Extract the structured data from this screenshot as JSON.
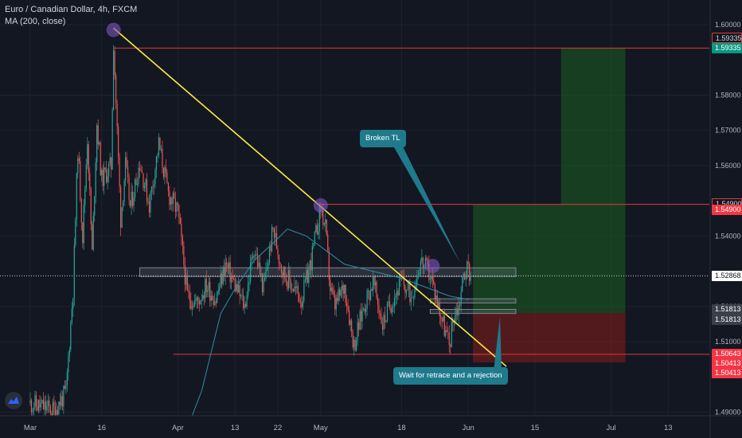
{
  "header": {
    "symbol_line": "Euro / Canadian Dollar, 4h, FXCM",
    "indicator_line": "MA (200, close)"
  },
  "icons": {
    "logo": "tradingview-logo-icon"
  },
  "colors": {
    "background": "#131722",
    "up_candle": "#26a69a",
    "down_candle": "#ef5350",
    "trendline": "#ffeb3b",
    "ma_line": "#2b8fa8",
    "level_line": "#e53935",
    "profit_zone": "#1b5e20",
    "loss_zone": "#7f1d1d",
    "callout": "#1f7a8c",
    "swing_marker": "#7e57c2",
    "current_price_tag": "#ffffff",
    "entry_tag": "#3b3f4a",
    "target_tag": "#089981",
    "stop_tag": "#f23645",
    "axis_text": "#b2b5be"
  },
  "annotations": {
    "broken_tl": "Broken TL",
    "wait": "Wait for retrace and a rejection"
  },
  "price_tags": [
    {
      "label": "1.59335",
      "price": 1.5962,
      "kind": "level"
    },
    {
      "label": "1.59335",
      "price": 1.5933,
      "kind": "target"
    },
    {
      "label": "1.54900",
      "price": 1.5493,
      "kind": "level"
    },
    {
      "label": "1.54900",
      "price": 1.5475,
      "kind": "stop"
    },
    {
      "label": "1.52868",
      "price": 1.5287,
      "kind": "current"
    },
    {
      "label": "1.51813",
      "price": 1.5191,
      "kind": "entry"
    },
    {
      "label": "1.51813",
      "price": 1.5162,
      "kind": "entry"
    },
    {
      "label": "1.50643",
      "price": 1.5065,
      "kind": "stop"
    },
    {
      "label": "1.50413",
      "price": 1.5038,
      "kind": "stop"
    },
    {
      "label": "1.50413",
      "price": 1.501,
      "kind": "stop"
    }
  ],
  "chart_data": {
    "type": "candlestick",
    "title": "Euro / Canadian Dollar, 4h, FXCM",
    "xlabel": "",
    "ylabel": "",
    "ylim": [
      1.489,
      1.607
    ],
    "x_ticks": [
      {
        "label": "Mar",
        "day": 0
      },
      {
        "label": "16",
        "day": 15
      },
      {
        "label": "Apr",
        "day": 31
      },
      {
        "label": "13",
        "day": 43
      },
      {
        "label": "22",
        "day": 52
      },
      {
        "label": "May",
        "day": 61
      },
      {
        "label": "18",
        "day": 78
      },
      {
        "label": "Jun",
        "day": 92
      },
      {
        "label": "15",
        "day": 106
      },
      {
        "label": "Jul",
        "day": 122
      },
      {
        "label": "13",
        "day": 134
      }
    ],
    "y_ticks": [
      {
        "label": "1.60000",
        "value": 1.6
      },
      {
        "label": "1.58000",
        "value": 1.58
      },
      {
        "label": "1.57000",
        "value": 1.57
      },
      {
        "label": "1.56000",
        "value": 1.56
      },
      {
        "label": "1.54000",
        "value": 1.54
      },
      {
        "label": "1.52000",
        "value": 1.52
      },
      {
        "label": "1.51000",
        "value": 1.51
      },
      {
        "label": "1.49000",
        "value": 1.49
      }
    ],
    "price_path": [
      [
        0,
        1.4925
      ],
      [
        5,
        1.4905
      ],
      [
        7.5,
        1.4955
      ],
      [
        9,
        1.525
      ],
      [
        10,
        1.565
      ],
      [
        11,
        1.54
      ],
      [
        12,
        1.568
      ],
      [
        13,
        1.535
      ],
      [
        14,
        1.572
      ],
      [
        15,
        1.556
      ],
      [
        17,
        1.56
      ],
      [
        17.5,
        1.595
      ],
      [
        18,
        1.578
      ],
      [
        19,
        1.545
      ],
      [
        20,
        1.56
      ],
      [
        21,
        1.548
      ],
      [
        23,
        1.561
      ],
      [
        25,
        1.549
      ],
      [
        27,
        1.566
      ],
      [
        29,
        1.552
      ],
      [
        31,
        1.547
      ],
      [
        33,
        1.523
      ],
      [
        35,
        1.521
      ],
      [
        37,
        1.526
      ],
      [
        39,
        1.522
      ],
      [
        41,
        1.532
      ],
      [
        43,
        1.526
      ],
      [
        45,
        1.52
      ],
      [
        47,
        1.537
      ],
      [
        49,
        1.525
      ],
      [
        51,
        1.542
      ],
      [
        53,
        1.53
      ],
      [
        55,
        1.526
      ],
      [
        57,
        1.522
      ],
      [
        59,
        1.533
      ],
      [
        61,
        1.548
      ],
      [
        62,
        1.542
      ],
      [
        63,
        1.525
      ],
      [
        64,
        1.52
      ],
      [
        66,
        1.526
      ],
      [
        68,
        1.509
      ],
      [
        70,
        1.52
      ],
      [
        72,
        1.527
      ],
      [
        74,
        1.515
      ],
      [
        76,
        1.522
      ],
      [
        78,
        1.527
      ],
      [
        80,
        1.523
      ],
      [
        82,
        1.533
      ],
      [
        84,
        1.529
      ],
      [
        86,
        1.519
      ],
      [
        88,
        1.509
      ],
      [
        89,
        1.518
      ],
      [
        90,
        1.52
      ],
      [
        91,
        1.529
      ],
      [
        92,
        1.531
      ],
      [
        92.5,
        1.5287
      ]
    ],
    "ma_200": [
      [
        34,
        1.489
      ],
      [
        36,
        1.496
      ],
      [
        38,
        1.507
      ],
      [
        40,
        1.518
      ],
      [
        43,
        1.525
      ],
      [
        47,
        1.533
      ],
      [
        51,
        1.538
      ],
      [
        54,
        1.542
      ],
      [
        58,
        1.54
      ],
      [
        62,
        1.536
      ],
      [
        66,
        1.532
      ],
      [
        72,
        1.53
      ],
      [
        78,
        1.528
      ],
      [
        84,
        1.525
      ],
      [
        88,
        1.523
      ],
      [
        92,
        1.522
      ]
    ],
    "trendline": {
      "from": [
        17.5,
        1.599
      ],
      "to": [
        100,
        1.503
      ]
    },
    "horizontal_levels": [
      1.59335,
      1.549,
      1.50643
    ],
    "zones": [
      {
        "type": "support-resistance",
        "x0": 23,
        "x1": 102,
        "y0": 1.5285,
        "y1": 1.531
      },
      {
        "type": "entry",
        "x0": 84,
        "x1": 102,
        "y0": 1.521,
        "y1": 1.5222
      },
      {
        "type": "entry",
        "x0": 84,
        "x1": 102,
        "y0": 1.518,
        "y1": 1.5192
      }
    ],
    "long_position": {
      "x0": 93,
      "x1": 125,
      "entry": 1.51813,
      "target": 1.549,
      "target2": 1.59335,
      "stop": 1.50413
    },
    "swing_markers": [
      [
        17.5,
        1.5985
      ],
      [
        61,
        1.5487
      ],
      [
        84.5,
        1.5315
      ]
    ]
  }
}
